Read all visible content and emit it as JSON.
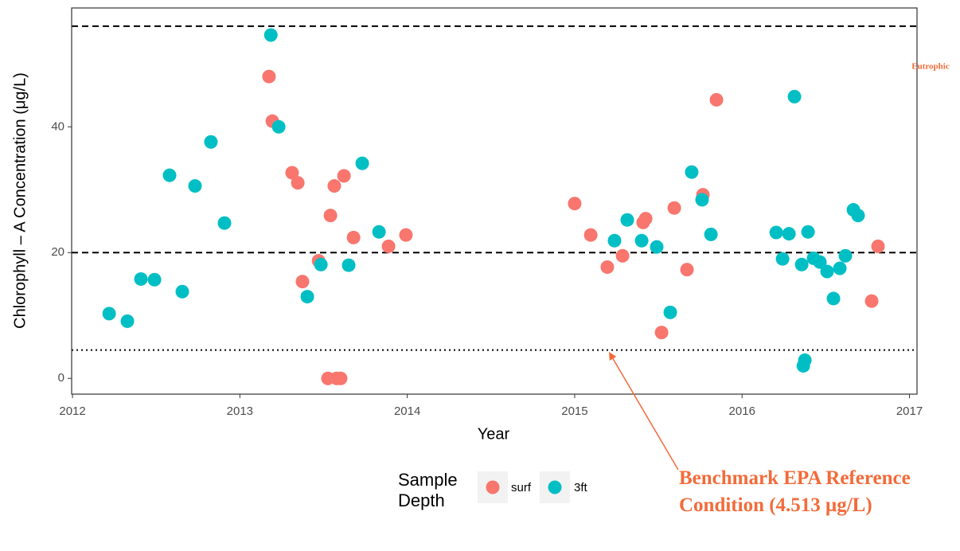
{
  "chart_data": {
    "type": "scatter",
    "x_label": "Year",
    "y_label": "Chlorophyll – A Concentration (μg/L)",
    "xlim": [
      2011.995,
      2017.045
    ],
    "xticks": [
      2012,
      2013,
      2014,
      2015,
      2016,
      2017
    ],
    "ylim": [
      -2.5,
      58.9
    ],
    "yticks": [
      0,
      20,
      40
    ],
    "grid": false,
    "legend_title": "Sample Depth",
    "legend_position": "bottom",
    "reference_lines": [
      {
        "value": 56,
        "style": "dashed"
      },
      {
        "value": 20,
        "style": "dashed"
      },
      {
        "value": 4.513,
        "style": "dotted"
      }
    ],
    "annotations": [
      {
        "text": "Eutrophic",
        "color": "#f26b3a"
      },
      {
        "text": "Benchmark EPA Reference Condition (4.513 μg/L)",
        "color": "#f26b3a"
      }
    ],
    "series": [
      {
        "name": "surf",
        "color": "#F8766D",
        "x": [
          2013.174,
          2013.194,
          2013.312,
          2013.346,
          2013.374,
          2013.47,
          2013.541,
          2013.564,
          2013.622,
          2013.679,
          2013.526,
          2013.579,
          2013.602,
          2013.888,
          2013.992,
          2015.0,
          2015.096,
          2015.195,
          2015.286,
          2015.409,
          2015.424,
          2015.519,
          2015.595,
          2015.671,
          2015.766,
          2015.847,
          2016.774,
          2016.812
        ],
        "values": [
          48.0,
          40.9,
          32.7,
          31.1,
          15.4,
          18.7,
          25.9,
          30.6,
          32.2,
          22.4,
          0,
          0,
          0,
          21.0,
          22.8,
          27.8,
          22.8,
          17.7,
          19.5,
          24.8,
          25.4,
          7.3,
          27.1,
          17.3,
          29.2,
          44.3,
          12.3,
          21.0
        ]
      },
      {
        "name": "3ft",
        "color": "#00BFC4",
        "x": [
          2012.219,
          2012.328,
          2012.409,
          2012.49,
          2012.58,
          2012.656,
          2012.732,
          2012.827,
          2012.908,
          2013.185,
          2013.232,
          2013.403,
          2013.484,
          2013.65,
          2013.731,
          2013.831,
          2015.238,
          2015.314,
          2015.4,
          2015.49,
          2015.571,
          2015.699,
          2015.761,
          2015.814,
          2016.204,
          2016.242,
          2016.28,
          2016.313,
          2016.356,
          2016.366,
          2016.375,
          2016.394,
          2016.427,
          2016.465,
          2016.508,
          2016.546,
          2016.584,
          2016.617,
          2016.665,
          2016.693
        ],
        "values": [
          10.3,
          9.1,
          15.8,
          15.7,
          32.3,
          13.8,
          30.6,
          37.6,
          24.7,
          54.6,
          40.0,
          13.0,
          18.1,
          18.0,
          34.2,
          23.3,
          21.9,
          25.2,
          21.9,
          20.9,
          10.5,
          32.8,
          28.4,
          22.9,
          23.2,
          19.0,
          23.0,
          44.8,
          18.1,
          2.0,
          2.9,
          23.3,
          19.1,
          18.5,
          17.0,
          12.7,
          17.5,
          19.5,
          26.8,
          25.9
        ]
      }
    ]
  }
}
